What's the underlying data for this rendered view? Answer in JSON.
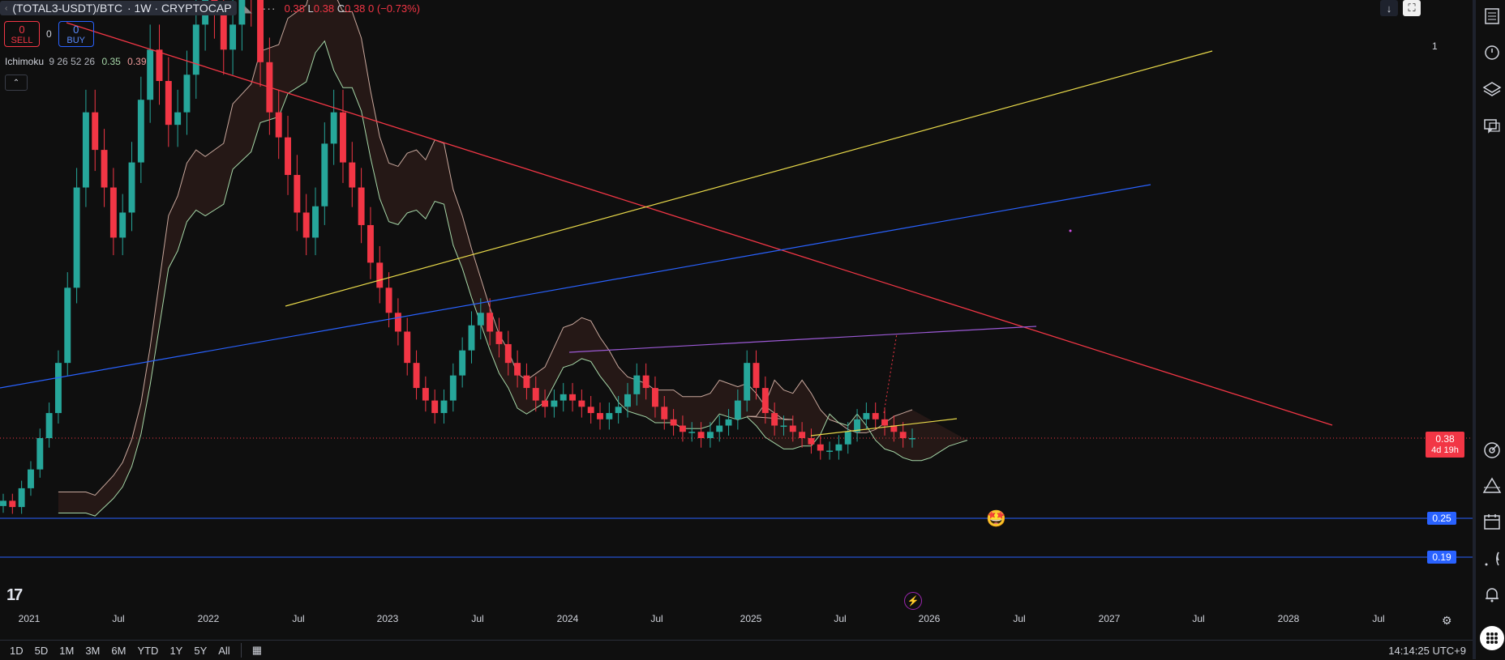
{
  "header": {
    "symbol": "(TOTAL3-USDT)/BTC",
    "symbol_suffix": "· 1W · CRYPTOCAP",
    "more": "···",
    "ohlc": {
      "o_tail": "0.38",
      "l_label": "L",
      "l_val": "0.38",
      "c_label": "C",
      "c_val": "0.38",
      "change": "0 (−0.73%)"
    }
  },
  "trade": {
    "sell_value": "0",
    "sell_label": "SELL",
    "spread": "0",
    "buy_value": "0",
    "buy_label": "BUY"
  },
  "indicator": {
    "name": "Ichimoku",
    "params": "9 26 52 26",
    "val1": "0.35",
    "val2": "0.39"
  },
  "price_labels": {
    "top_level": "1",
    "current_price": "0.38",
    "countdown": "4d 19h",
    "level_1": "0.25",
    "level_2": "0.19"
  },
  "x_axis": {
    "ticks": [
      "2021",
      "Jul",
      "2022",
      "Jul",
      "2023",
      "Jul",
      "2024",
      "Jul",
      "2025",
      "Jul",
      "2026",
      "Jul",
      "2027",
      "Jul",
      "2028",
      "Jul"
    ]
  },
  "bottom": {
    "ranges": [
      "1D",
      "5D",
      "1M",
      "3M",
      "6M",
      "YTD",
      "1Y",
      "5Y",
      "All"
    ],
    "time": "14:14:25 UTC+9"
  },
  "colors": {
    "up": "#26a69a",
    "down": "#f23645",
    "red_line": "#f23645",
    "yellow_line": "#e8d94a",
    "blue_line": "#2962ff",
    "purple_line": "#9c5ad6",
    "level_line": "#2962ff"
  },
  "right_toolbar_icons": [
    "watchlist-icon",
    "alarm-clock-icon",
    "layers-icon",
    "chat-icon",
    "target-icon",
    "triangle-icon",
    "calendar-icon",
    "broadcast-icon",
    "bell-icon",
    "grid-icon"
  ],
  "chart_data": {
    "type": "candlestick",
    "title": "(TOTAL3-USDT)/BTC",
    "timeframe": "1W",
    "x_ticks": [
      "2021",
      "Jul",
      "2022",
      "Jul",
      "2023",
      "Jul",
      "2024",
      "Jul",
      "2025",
      "Jul",
      "2026",
      "Jul",
      "2027",
      "Jul",
      "2028",
      "Jul"
    ],
    "price_levels": [
      1,
      0.38,
      0.25,
      0.19
    ],
    "last_close": 0.38,
    "change_pct": -0.73,
    "close_series": [
      0.28,
      0.27,
      0.3,
      0.33,
      0.38,
      0.42,
      0.5,
      0.62,
      0.78,
      0.9,
      0.84,
      0.78,
      0.7,
      0.74,
      0.82,
      0.92,
      1.0,
      0.95,
      0.88,
      0.9,
      0.96,
      1.04,
      1.1,
      1.06,
      1.0,
      1.04,
      1.12,
      1.08,
      0.98,
      0.9,
      0.86,
      0.8,
      0.74,
      0.7,
      0.75,
      0.85,
      0.9,
      0.82,
      0.78,
      0.72,
      0.66,
      0.62,
      0.58,
      0.55,
      0.5,
      0.46,
      0.44,
      0.42,
      0.44,
      0.48,
      0.52,
      0.56,
      0.58,
      0.55,
      0.53,
      0.5,
      0.48,
      0.46,
      0.44,
      0.43,
      0.44,
      0.45,
      0.44,
      0.43,
      0.42,
      0.41,
      0.42,
      0.43,
      0.45,
      0.48,
      0.46,
      0.43,
      0.41,
      0.4,
      0.39,
      0.39,
      0.38,
      0.39,
      0.4,
      0.41,
      0.44,
      0.5,
      0.46,
      0.42,
      0.4,
      0.4,
      0.39,
      0.38,
      0.37,
      0.36,
      0.36,
      0.37,
      0.39,
      0.41,
      0.42,
      0.41,
      0.4,
      0.39,
      0.38,
      0.38
    ]
  }
}
